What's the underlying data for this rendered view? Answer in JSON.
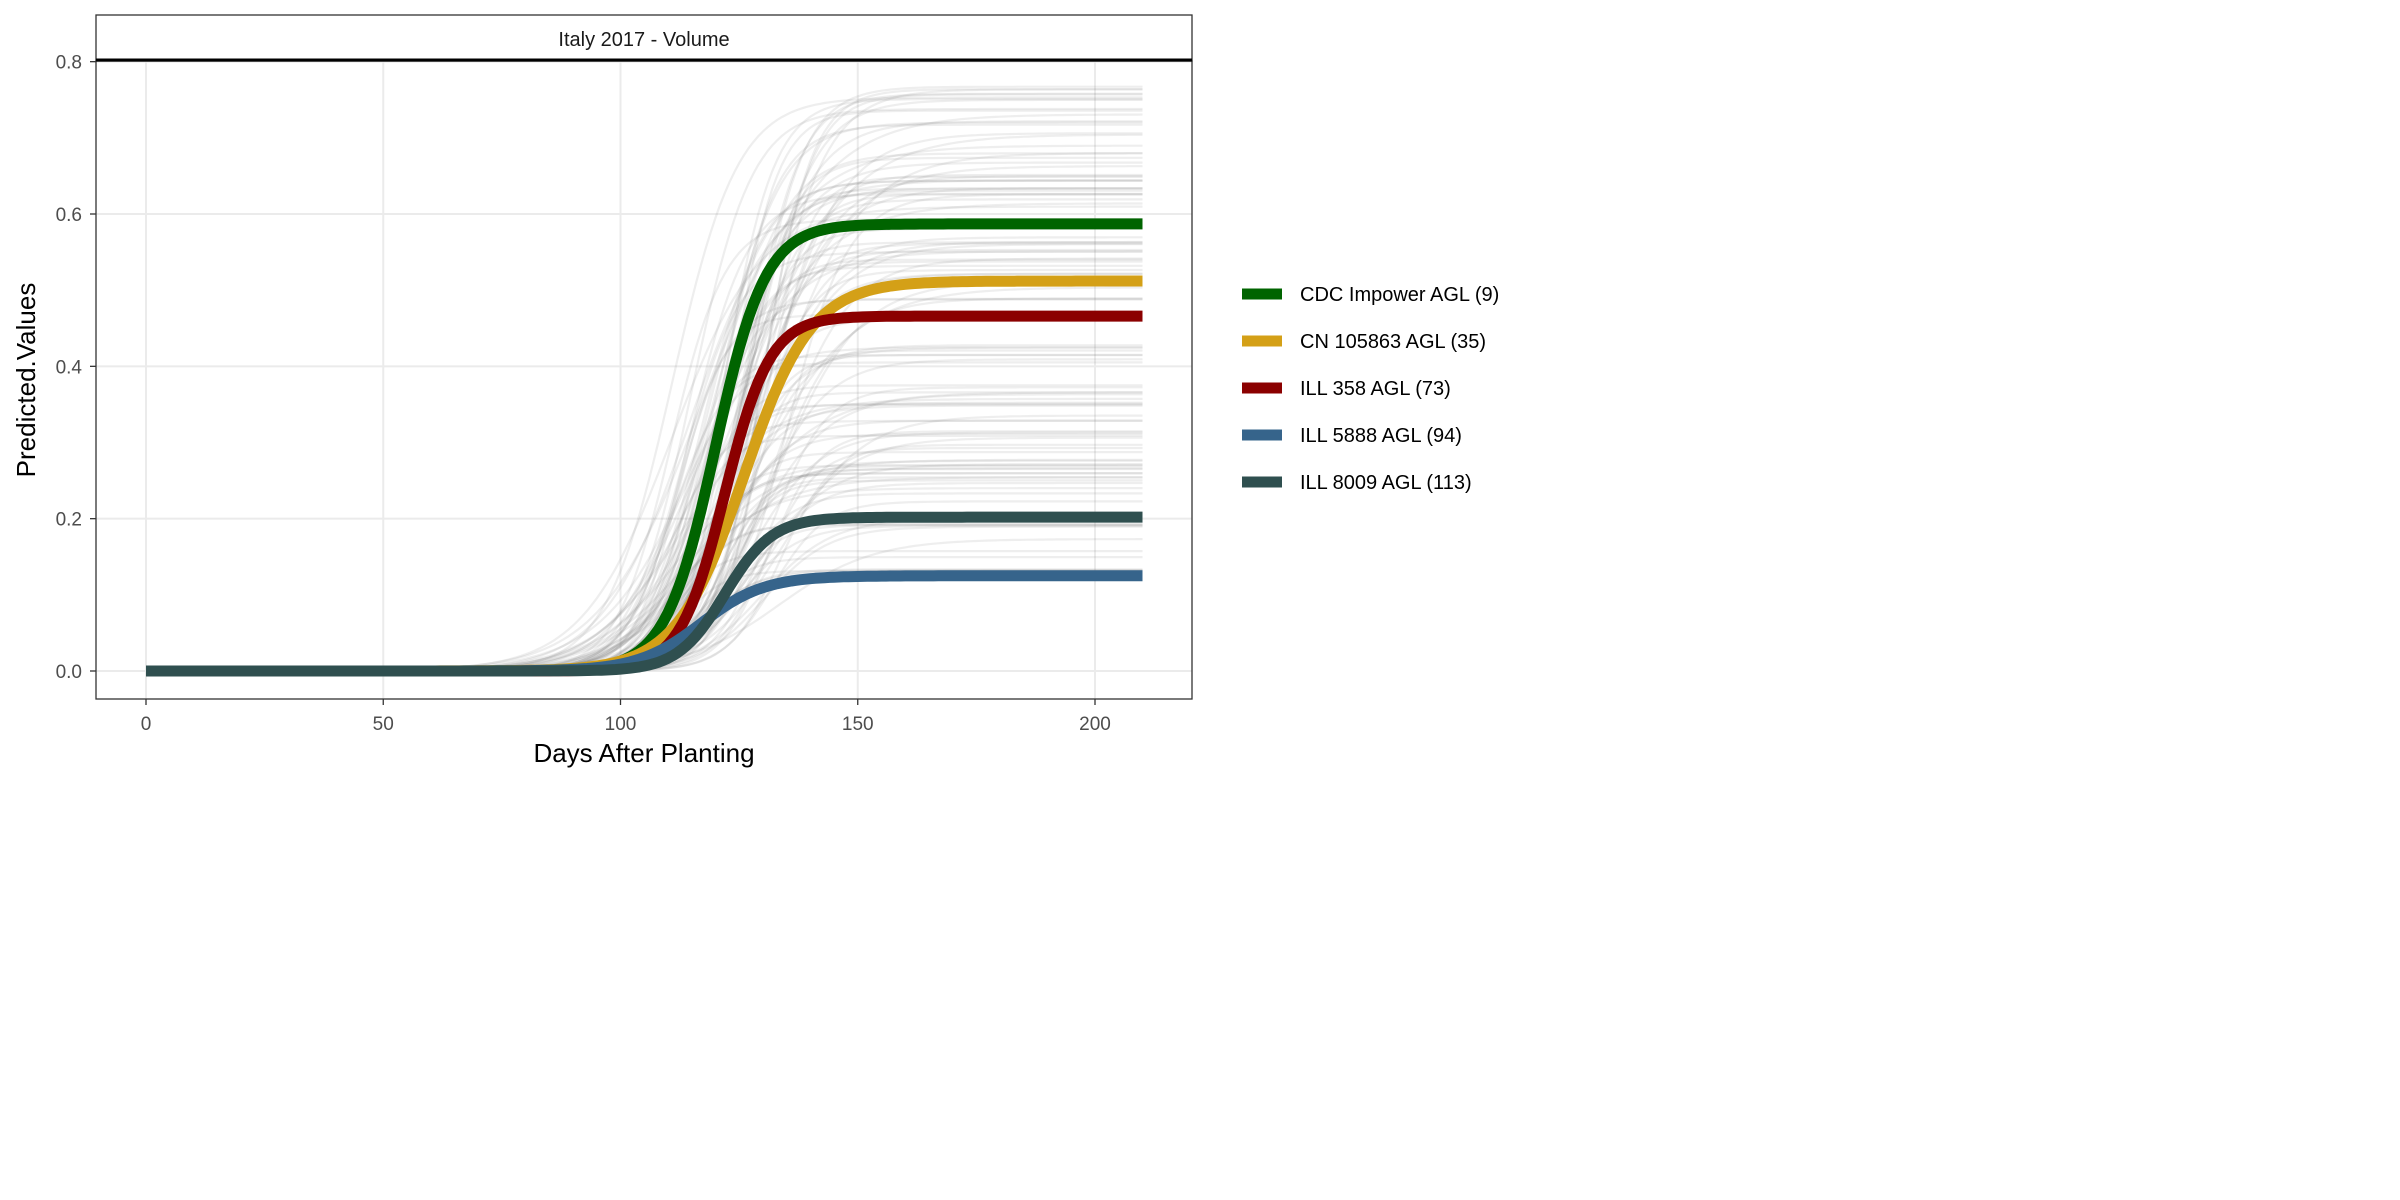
{
  "chart_data": {
    "type": "line",
    "panel_title": "Italy 2017 - Volume",
    "xlabel": "Days After Planting",
    "ylabel": "Predicted.Values",
    "xlim": [
      -10,
      220
    ],
    "ylim": [
      -0.037,
      0.8
    ],
    "x_ticks": [
      0,
      50,
      100,
      150,
      200
    ],
    "x_tick_labels": [
      "0",
      "50",
      "100",
      "150",
      "200"
    ],
    "y_ticks": [
      0.0,
      0.2,
      0.4,
      0.6,
      0.8
    ],
    "y_tick_labels": [
      "0.0",
      "0.2",
      "0.4",
      "0.6",
      "0.8"
    ],
    "grid": true,
    "legend_position": "right",
    "x_range": [
      0,
      210
    ],
    "model": "logistic",
    "series": [
      {
        "name": "CDC Impower AGL (9)",
        "color": "#006400",
        "asymptote": 0.587,
        "midpoint": 120,
        "rate": 0.19
      },
      {
        "name": "CN 105863 AGL (35)",
        "color": "#d4a017",
        "asymptote": 0.512,
        "midpoint": 126,
        "rate": 0.14
      },
      {
        "name": "ILL 358 AGL (73)",
        "color": "#8b0000",
        "asymptote": 0.466,
        "midpoint": 122,
        "rate": 0.21
      },
      {
        "name": "ILL 5888 AGL (94)",
        "color": "#36648b",
        "asymptote": 0.125,
        "midpoint": 117,
        "rate": 0.15
      },
      {
        "name": "ILL 8009 AGL (113)",
        "color": "#2f4f4f",
        "asymptote": 0.202,
        "midpoint": 122,
        "rate": 0.2
      }
    ],
    "background_lines": {
      "color": "#7f7f7f",
      "count": 120,
      "asymptote_range": [
        0.13,
        0.77
      ],
      "midpoint_range": [
        110,
        135
      ],
      "rate_range": [
        0.09,
        0.22
      ]
    }
  }
}
